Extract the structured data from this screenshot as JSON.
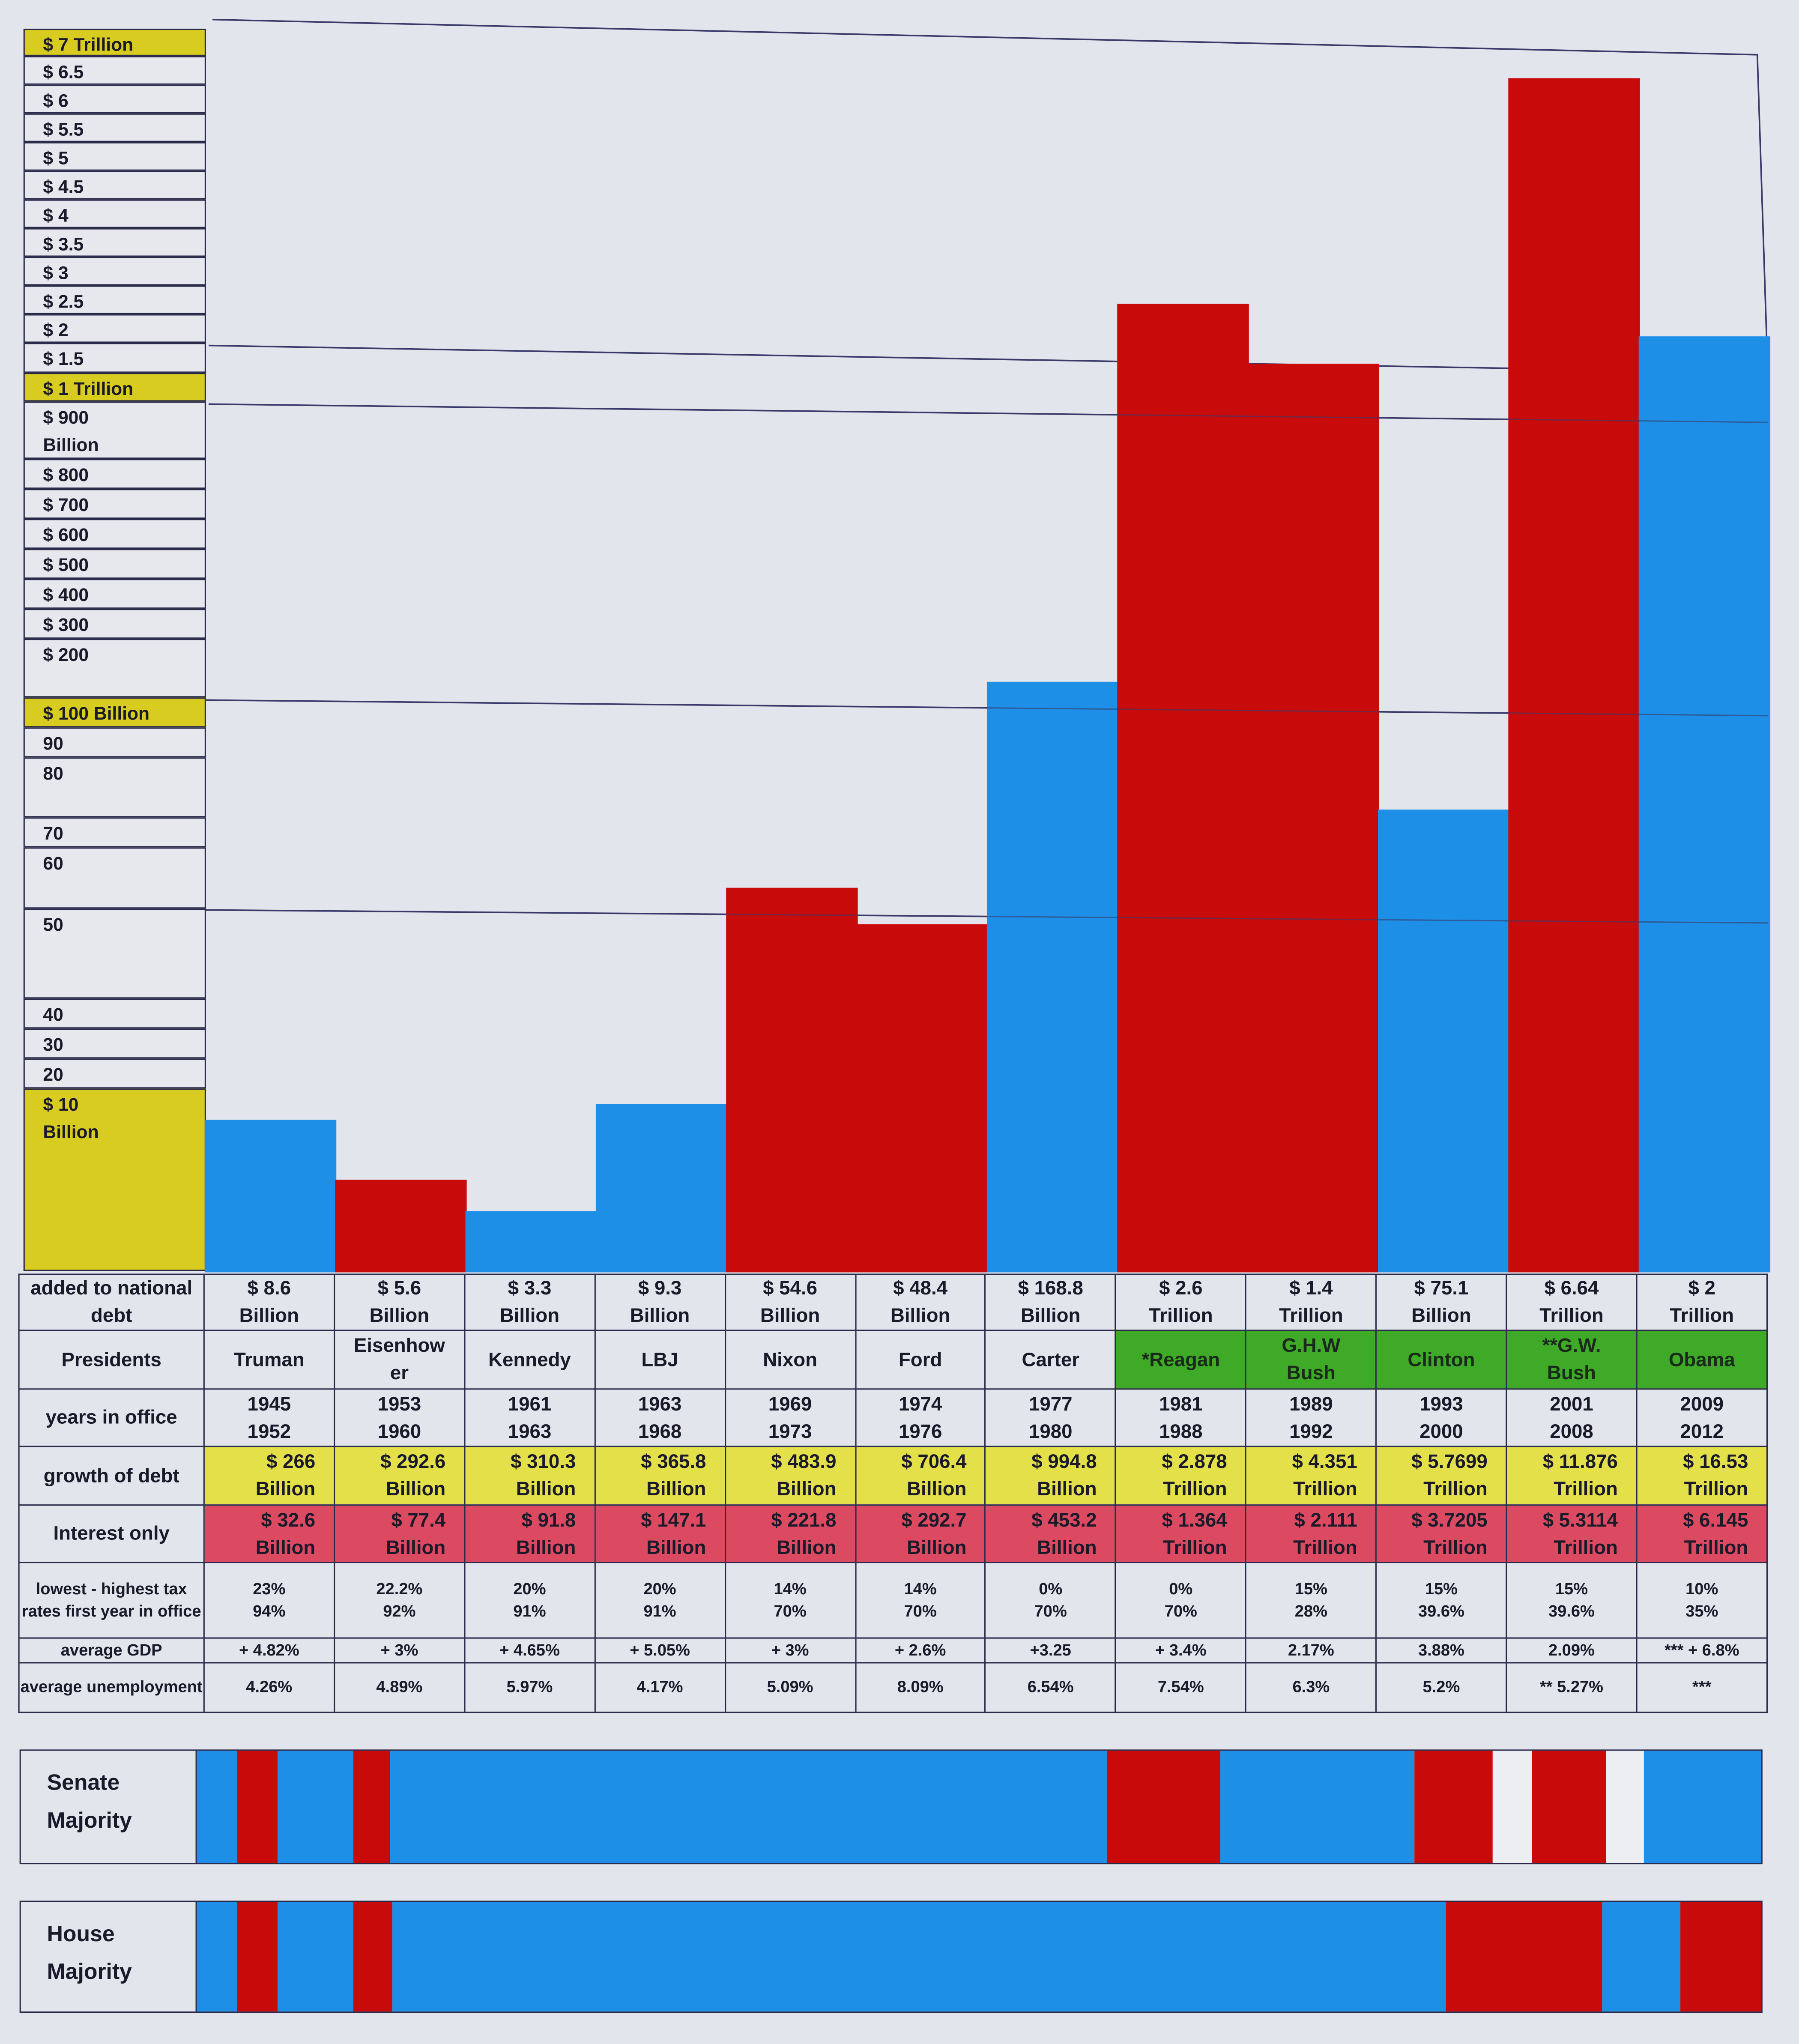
{
  "colors": {
    "democrat": "#1e8fe6",
    "republican": "#c80a0a",
    "none": "#eceef2",
    "axis_highlight": "#d9cc20",
    "growth_row": "#e4e04a",
    "interest_row": "#dc4a62",
    "president_highlight": "#3faa28"
  },
  "chart_data": {
    "type": "bar",
    "title": "",
    "xlabel": "Presidents",
    "ylabel": "added to national debt",
    "y_scale": "piecewise (non-linear)",
    "y_tick_labels": [
      "$ 7 Trillion",
      "$ 6.5",
      "$ 6",
      "$ 5.5",
      "$ 5",
      "$ 4.5",
      "$ 4",
      "$ 3.5",
      "$ 3",
      "$ 2.5",
      "$ 2",
      "$ 1.5",
      "$ 1 Trillion",
      "$ 900 Billion",
      "$ 800",
      "$ 700",
      "$ 600",
      "$ 500",
      "$ 400",
      "$ 300",
      "$ 200",
      "$ 100 Billion",
      "90",
      "80",
      "70",
      "60",
      "50",
      "40",
      "30",
      "20",
      "$ 10 Billion"
    ],
    "categories": [
      "Truman",
      "Eisenhower",
      "Kennedy",
      "LBJ",
      "Nixon",
      "Ford",
      "Carter",
      "*Reagan",
      "G.H.W Bush",
      "Clinton",
      "**G.W. Bush",
      "Obama"
    ],
    "values_billion": [
      8.6,
      5.6,
      3.3,
      9.3,
      54.6,
      48.4,
      168.8,
      2600,
      1400,
      75.1,
      6640,
      2000
    ],
    "party": [
      "democrat",
      "republican",
      "democrat",
      "democrat",
      "republican",
      "republican",
      "democrat",
      "republican",
      "republican",
      "democrat",
      "republican",
      "democrat"
    ]
  },
  "table": {
    "row_labels": {
      "added": "added to national debt",
      "presidents": "Presidents",
      "years": "years in office",
      "growth": "growth of debt",
      "interest": "Interest only",
      "tax": "lowest - highest tax rates first year in office",
      "gdp": "average GDP",
      "unemployment": "average unemployment"
    },
    "columns": [
      {
        "added": [
          "$ 8.6",
          "Billion"
        ],
        "president": [
          "Truman"
        ],
        "years": [
          "1945",
          "1952"
        ],
        "growth": [
          "$ 266",
          "Billion"
        ],
        "interest": [
          "$ 32.6",
          "Billion"
        ],
        "tax": [
          "23%",
          "94%"
        ],
        "gdp": "+ 4.82%",
        "unemployment": "4.26%",
        "highlight": false
      },
      {
        "added": [
          "$ 5.6",
          "Billion"
        ],
        "president": [
          "Eisenhow",
          "er"
        ],
        "years": [
          "1953",
          "1960"
        ],
        "growth": [
          "$ 292.6",
          "Billion"
        ],
        "interest": [
          "$ 77.4",
          "Billion"
        ],
        "tax": [
          "22.2%",
          "92%"
        ],
        "gdp": "+ 3%",
        "unemployment": "4.89%",
        "highlight": false
      },
      {
        "added": [
          "$ 3.3",
          "Billion"
        ],
        "president": [
          "Kennedy"
        ],
        "years": [
          "1961",
          "1963"
        ],
        "growth": [
          "$ 310.3",
          "Billion"
        ],
        "interest": [
          "$ 91.8",
          "Billion"
        ],
        "tax": [
          "20%",
          "91%"
        ],
        "gdp": "+ 4.65%",
        "unemployment": "5.97%",
        "highlight": false
      },
      {
        "added": [
          "$ 9.3",
          "Billion"
        ],
        "president": [
          "LBJ"
        ],
        "years": [
          "1963",
          "1968"
        ],
        "growth": [
          "$ 365.8",
          "Billion"
        ],
        "interest": [
          "$ 147.1",
          "Billion"
        ],
        "tax": [
          "20%",
          "91%"
        ],
        "gdp": "+ 5.05%",
        "unemployment": "4.17%",
        "highlight": false
      },
      {
        "added": [
          "$ 54.6",
          "Billion"
        ],
        "president": [
          "Nixon"
        ],
        "years": [
          "1969",
          "1973"
        ],
        "growth": [
          "$ 483.9",
          "Billion"
        ],
        "interest": [
          "$ 221.8",
          "Billion"
        ],
        "tax": [
          "14%",
          "70%"
        ],
        "gdp": "+ 3%",
        "unemployment": "5.09%",
        "highlight": false
      },
      {
        "added": [
          "$ 48.4",
          "Billion"
        ],
        "president": [
          "Ford"
        ],
        "years": [
          "1974",
          "1976"
        ],
        "growth": [
          "$ 706.4",
          "Billion"
        ],
        "interest": [
          "$ 292.7",
          "Billion"
        ],
        "tax": [
          "14%",
          "70%"
        ],
        "gdp": "+ 2.6%",
        "unemployment": "8.09%",
        "highlight": false
      },
      {
        "added": [
          "$ 168.8",
          "Billion"
        ],
        "president": [
          "Carter"
        ],
        "years": [
          "1977",
          "1980"
        ],
        "growth": [
          "$ 994.8",
          "Billion"
        ],
        "interest": [
          "$ 453.2",
          "Billion"
        ],
        "tax": [
          "0%",
          "70%"
        ],
        "gdp": "+3.25",
        "unemployment": "6.54%",
        "highlight": false
      },
      {
        "added": [
          "$ 2.6",
          "Trillion"
        ],
        "president": [
          "*Reagan"
        ],
        "years": [
          "1981",
          "1988"
        ],
        "growth": [
          "$ 2.878",
          "Trillion"
        ],
        "interest": [
          "$ 1.364",
          "Trillion"
        ],
        "tax": [
          "0%",
          "70%"
        ],
        "gdp": "+ 3.4%",
        "unemployment": "7.54%",
        "highlight": true
      },
      {
        "added": [
          "$ 1.4",
          "Trillion"
        ],
        "president": [
          "G.H.W",
          "Bush"
        ],
        "years": [
          "1989",
          "1992"
        ],
        "growth": [
          "$ 4.351",
          "Trillion"
        ],
        "interest": [
          "$ 2.111",
          "Trillion"
        ],
        "tax": [
          "15%",
          "28%"
        ],
        "gdp": "2.17%",
        "unemployment": "6.3%",
        "highlight": true
      },
      {
        "added": [
          "$ 75.1",
          "Billion"
        ],
        "president": [
          "Clinton"
        ],
        "years": [
          "1993",
          "2000"
        ],
        "growth": [
          "$ 5.7699",
          "Trillion"
        ],
        "interest": [
          "$ 3.7205",
          "Trillion"
        ],
        "tax": [
          "15%",
          "39.6%"
        ],
        "gdp": "3.88%",
        "unemployment": "5.2%",
        "highlight": true
      },
      {
        "added": [
          "$ 6.64",
          "Trillion"
        ],
        "president": [
          "**G.W.",
          "Bush"
        ],
        "years": [
          "2001",
          "2008"
        ],
        "growth": [
          "$ 11.876",
          "Trillion"
        ],
        "interest": [
          "$ 5.3114",
          "Trillion"
        ],
        "tax": [
          "15%",
          "39.6%"
        ],
        "gdp": "2.09%",
        "unemployment": "** 5.27%",
        "highlight": true
      },
      {
        "added": [
          "$ 2",
          "Trillion"
        ],
        "president": [
          "Obama"
        ],
        "years": [
          "2009",
          "2012"
        ],
        "growth": [
          "$ 16.53",
          "Trillion"
        ],
        "interest": [
          "$ 6.145",
          "Trillion"
        ],
        "tax": [
          "10%",
          "35%"
        ],
        "gdp": "*** + 6.8%",
        "unemployment": "***",
        "highlight": true
      }
    ]
  },
  "senate": {
    "label": [
      "Senate",
      "Majority"
    ],
    "segments": [
      {
        "party": "democrat",
        "fraction": 0.026
      },
      {
        "party": "republican",
        "fraction": 0.026
      },
      {
        "party": "democrat",
        "fraction": 0.048
      },
      {
        "party": "republican",
        "fraction": 0.023
      },
      {
        "party": "democrat",
        "fraction": 0.459
      },
      {
        "party": "republican",
        "fraction": 0.072
      },
      {
        "party": "democrat",
        "fraction": 0.124
      },
      {
        "party": "republican",
        "fraction": 0.05
      },
      {
        "party": "none",
        "fraction": 0.025
      },
      {
        "party": "republican",
        "fraction": 0.048
      },
      {
        "party": "none",
        "fraction": 0.024
      },
      {
        "party": "democrat",
        "fraction": 0.075
      }
    ]
  },
  "house": {
    "label": [
      "House",
      "Majority"
    ],
    "segments": [
      {
        "party": "democrat",
        "fraction": 0.026
      },
      {
        "party": "republican",
        "fraction": 0.026
      },
      {
        "party": "democrat",
        "fraction": 0.048
      },
      {
        "party": "republican",
        "fraction": 0.025
      },
      {
        "party": "democrat",
        "fraction": 0.673
      },
      {
        "party": "republican",
        "fraction": 0.1
      },
      {
        "party": "democrat",
        "fraction": 0.05
      },
      {
        "party": "republican",
        "fraction": 0.052
      }
    ]
  }
}
